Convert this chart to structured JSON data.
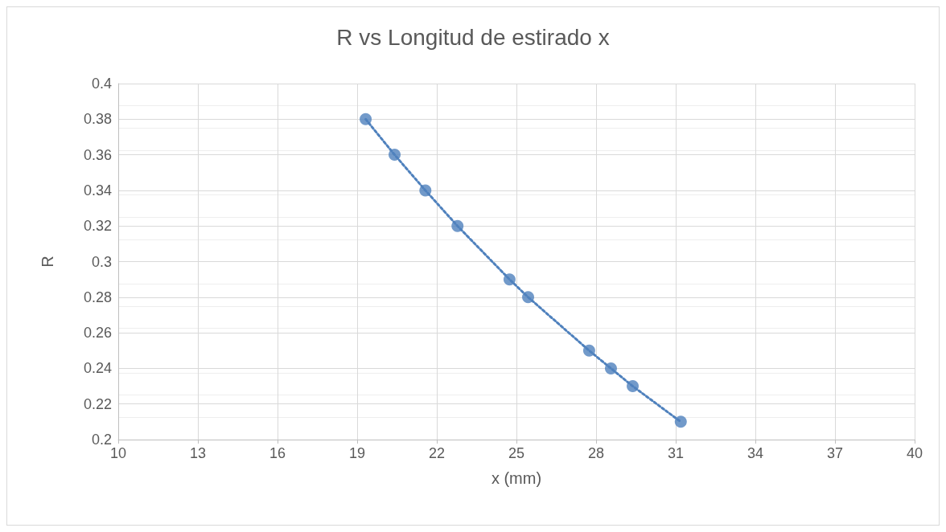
{
  "chart_data": {
    "type": "scatter",
    "title": "R vs Longitud de estirado x",
    "xlabel": "x (mm)",
    "ylabel": "R",
    "xlim": [
      10,
      40
    ],
    "xticks": [
      10,
      13,
      16,
      19,
      22,
      25,
      28,
      31,
      34,
      37,
      40
    ],
    "ylim": [
      0.2,
      0.4
    ],
    "yticks": [
      0.2,
      0.22,
      0.24,
      0.26,
      0.28,
      0.3,
      0.32,
      0.34,
      0.36,
      0.38,
      0.4
    ],
    "grid": true,
    "marker": "circle",
    "series": [
      {
        "color": "#4f81bd",
        "x": [
          19.32,
          20.41,
          21.57,
          22.78,
          24.74,
          25.44,
          27.74,
          28.56,
          29.38,
          31.19
        ],
        "values": [
          0.38,
          0.36,
          0.34,
          0.32,
          0.29,
          0.28,
          0.25,
          0.24,
          0.23,
          0.21
        ]
      },
      {
        "type": "line",
        "color": "#4f81bd",
        "line_style": "dotted",
        "marker": "none",
        "x": [
          19.32,
          20.41,
          21.57,
          22.78,
          24.74,
          25.44,
          27.74,
          28.56,
          29.38,
          31.19
        ],
        "values": [
          0.38,
          0.36,
          0.34,
          0.32,
          0.29,
          0.28,
          0.25,
          0.24,
          0.23,
          0.21
        ]
      }
    ]
  }
}
